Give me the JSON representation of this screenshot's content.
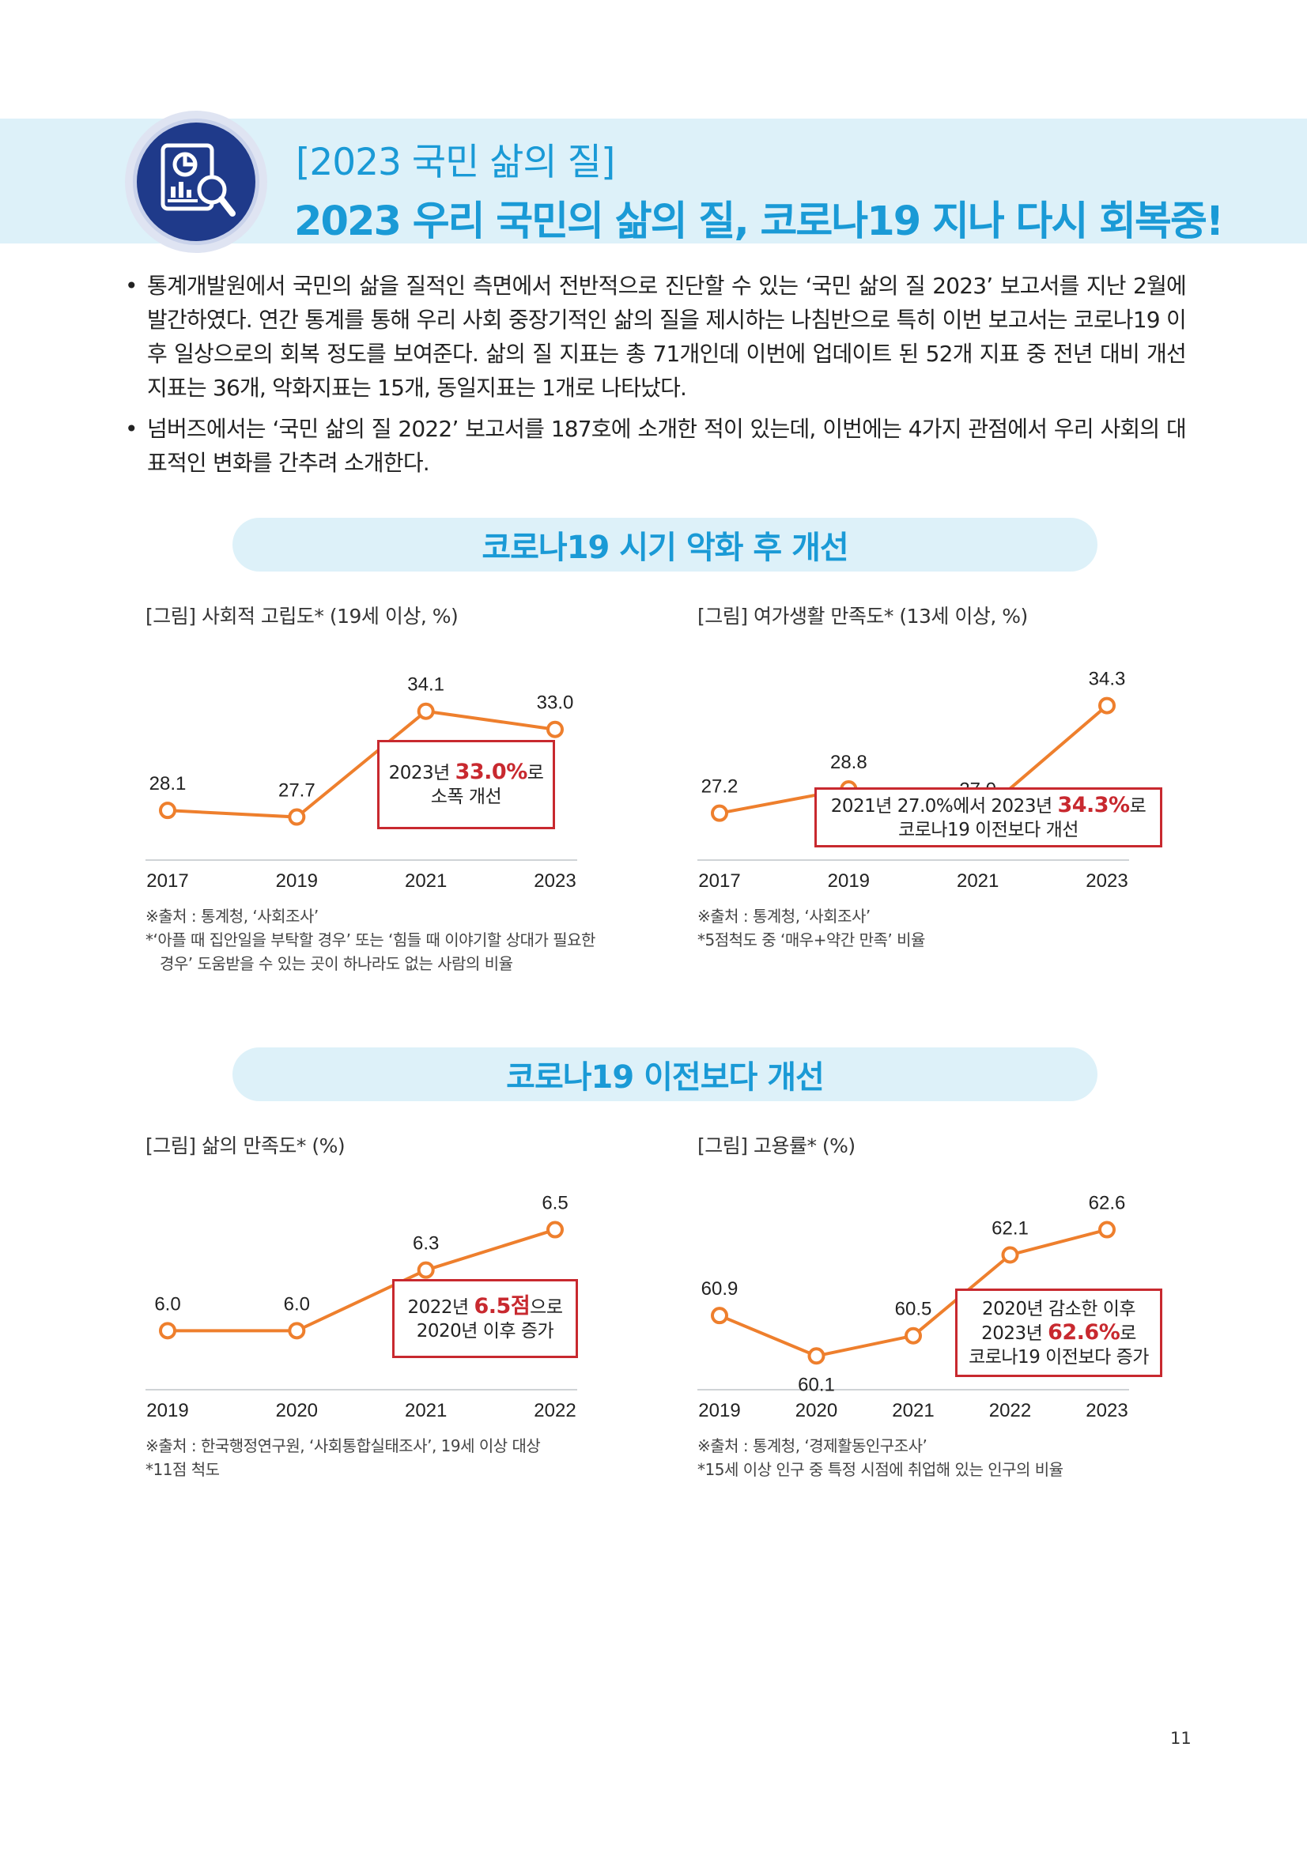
{
  "header": {
    "subtitle": "[2023 국민 삶의 질]",
    "title": "2023 우리 국민의 삶의 질, 코로나19 지나 다시 회복중!",
    "icon": "report-magnifier-icon"
  },
  "intro": [
    "통계개발원에서 국민의 삶을 질적인 측면에서 전반적으로 진단할 수 있는 ‘국민 삶의 질 2023’ 보고서를 지난 2월에 발간하였다. 연간 통계를 통해 우리 사회 중장기적인 삶의 질을 제시하는 나침반으로 특히 이번 보고서는 코로나19 이후 일상으로의 회복 정도를 보여준다. 삶의 질 지표는 총 71개인데 이번에 업데이트 된 52개 지표 중 전년 대비 개선지표는 36개, 악화지표는 15개, 동일지표는 1개로 나타났다.",
    "넘버즈에서는 ‘국민 삶의 질 2022’ 보고서를 187호에 소개한 적이 있는데, 이번에는 4가지 관점에서 우리 사회의 대표적인 변화를 간추려 소개한다."
  ],
  "sections": [
    {
      "title": "코로나19 시기 악화 후 개선"
    },
    {
      "title": "코로나19 이전보다 개선"
    }
  ],
  "chart_data": [
    {
      "type": "line",
      "caption": "[그림] 사회적 고립도* (19세 이상, %)",
      "x": [
        "2017",
        "2019",
        "2021",
        "2023"
      ],
      "values": [
        28.1,
        27.7,
        34.1,
        33.0
      ],
      "value_labels": [
        "28.1",
        "27.7",
        "34.1",
        "33.0"
      ],
      "ylim": [
        25,
        36
      ],
      "color": "#ee7f2d",
      "callout": {
        "line1_pre": "2023년 ",
        "line1_hl": "33.0%",
        "line1_post": "로",
        "line2_pre": "소폭 개선",
        "line2_hl": "",
        "line2_post": "",
        "line3": ""
      },
      "notes": [
        "※출처 : 통계청, ‘사회조사’",
        "*‘아플 때 집안일을 부탁할 경우’ 또는 ‘힘들 때 이야기할 상대가 필요한",
        "경우’ 도움받을 수 있는 곳이 하나라도 없는 사람의 비율"
      ]
    },
    {
      "type": "line",
      "caption": "[그림] 여가생활 만족도* (13세 이상, %)",
      "x": [
        "2017",
        "2019",
        "2021",
        "2023"
      ],
      "values": [
        27.2,
        28.8,
        27.0,
        34.3
      ],
      "value_labels": [
        "27.2",
        "28.8",
        "27.0",
        "34.3"
      ],
      "ylim": [
        24,
        36
      ],
      "color": "#ee7f2d",
      "callout": {
        "line1_pre": "2021년 27.0%에서 2023년 ",
        "line1_hl": "34.3%",
        "line1_post": "로",
        "line2_pre": "코로나19 이전보다 개선",
        "line2_hl": "",
        "line2_post": "",
        "line3": ""
      },
      "notes": [
        "※출처 : 통계청, ‘사회조사’",
        "*5점척도 중 ‘매우+약간 만족’ 비율"
      ]
    },
    {
      "type": "line",
      "caption": "[그림] 삶의 만족도* (%)",
      "x": [
        "2019",
        "2020",
        "2021",
        "2022"
      ],
      "values": [
        6.0,
        6.0,
        6.3,
        6.5
      ],
      "value_labels": [
        "6.0",
        "6.0",
        "6.3",
        "6.5"
      ],
      "ylim": [
        5.7,
        6.6
      ],
      "color": "#ee7f2d",
      "callout": {
        "line1_pre": "2022년 ",
        "line1_hl": "6.5점",
        "line1_post": "으로",
        "line2_pre": "2020년 이후 증가",
        "line2_hl": "",
        "line2_post": "",
        "line3": ""
      },
      "notes": [
        "※출처 : 한국행정연구원, ‘사회통합실태조사’, 19세 이상 대상",
        "*11점 척도"
      ]
    },
    {
      "type": "line",
      "caption": "[그림] 고용률* (%)",
      "x": [
        "2019",
        "2020",
        "2021",
        "2022",
        "2023"
      ],
      "values": [
        60.9,
        60.1,
        60.5,
        62.1,
        62.6
      ],
      "value_labels": [
        "60.9",
        "60.1",
        "60.5",
        "62.1",
        "62.6"
      ],
      "ylim": [
        59.4,
        63.0
      ],
      "color": "#ee7f2d",
      "callout": {
        "line1_pre": "2020년 감소한 이후",
        "line1_hl": "",
        "line1_post": "",
        "line2_pre": "2023년 ",
        "line2_hl": "62.6%",
        "line2_post": "로",
        "line3": "코로나19 이전보다 증가"
      },
      "notes": [
        "※출처 : 통계청, ‘경제활동인구조사’",
        "*15세 이상 인구 중 특정 시점에 취업해 있는 인구의 비율"
      ]
    }
  ],
  "page_number": "11"
}
